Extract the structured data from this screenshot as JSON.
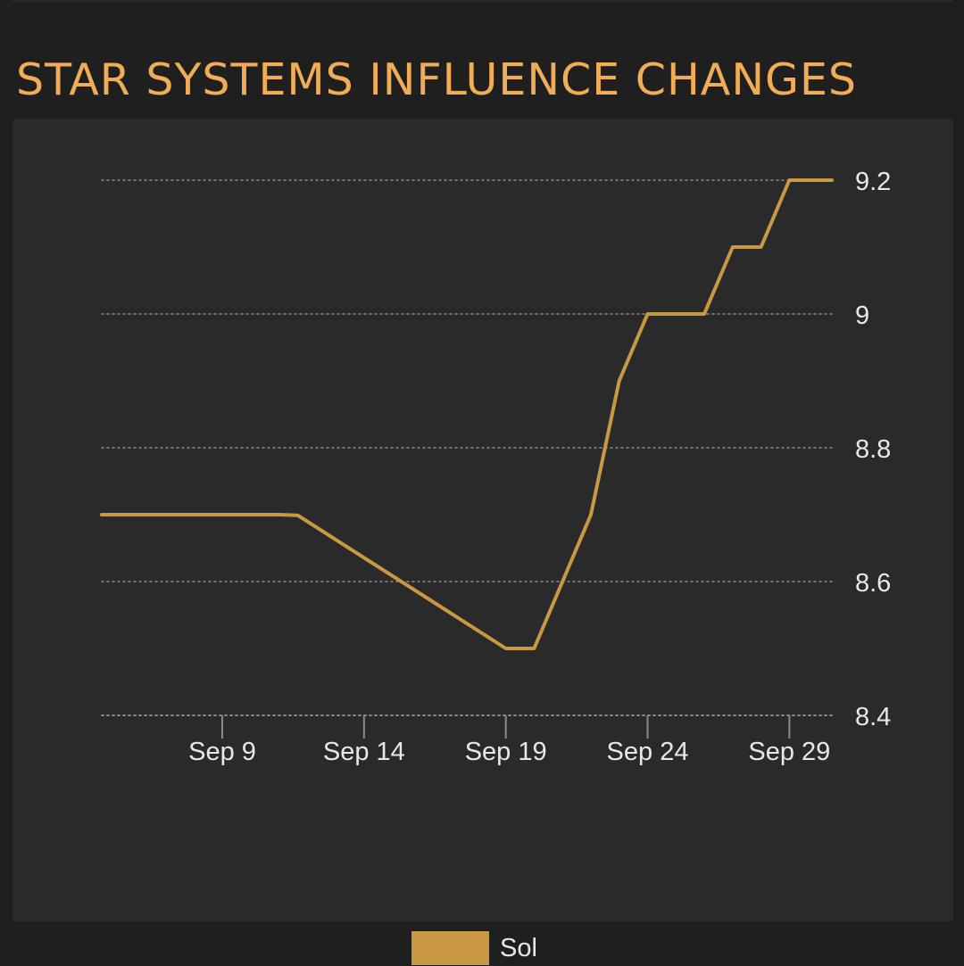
{
  "header": {
    "title": "STAR SYSTEMS INFLUENCE CHANGES"
  },
  "colors": {
    "title": "#f0ad55",
    "series": "#c99843",
    "panel_background": "#2a2a2a",
    "page_background": "#1f1f1f",
    "grid": "#8a8a8a",
    "text": "#e8e8e8"
  },
  "chart_data": {
    "type": "line",
    "title": "",
    "xlabel": "",
    "ylabel": "",
    "x_ticks": [
      "Sep 9",
      "Sep 14",
      "Sep 19",
      "Sep 24",
      "Sep 29"
    ],
    "y_ticks": [
      "8.4",
      "8.6",
      "8.8",
      "9",
      "9.2"
    ],
    "ylim": [
      8.4,
      9.2
    ],
    "xlim": [
      "Sep 4 18:00",
      "Sep 30 12:00"
    ],
    "y_axis_position": "right",
    "grid": "horizontal dotted",
    "legend_position": "bottom-center",
    "series": [
      {
        "name": "Sol",
        "color": "#c99843",
        "points": [
          {
            "x": "Sep 4 18:00",
            "y": 8.7
          },
          {
            "x": "Sep 8",
            "y": 8.7
          },
          {
            "x": "Sep 10",
            "y": 8.7
          },
          {
            "x": "Sep 11",
            "y": 8.7
          },
          {
            "x": "Sep 11 16:00",
            "y": 8.699
          },
          {
            "x": "Sep 19",
            "y": 8.5
          },
          {
            "x": "Sep 20",
            "y": 8.5
          },
          {
            "x": "Sep 21",
            "y": 8.6
          },
          {
            "x": "Sep 22",
            "y": 8.7
          },
          {
            "x": "Sep 23",
            "y": 8.9
          },
          {
            "x": "Sep 24",
            "y": 9.0
          },
          {
            "x": "Sep 26",
            "y": 9.0
          },
          {
            "x": "Sep 27",
            "y": 9.1
          },
          {
            "x": "Sep 28",
            "y": 9.1
          },
          {
            "x": "Sep 29",
            "y": 9.2
          },
          {
            "x": "Sep 30 12:00",
            "y": 9.2
          }
        ]
      }
    ]
  }
}
